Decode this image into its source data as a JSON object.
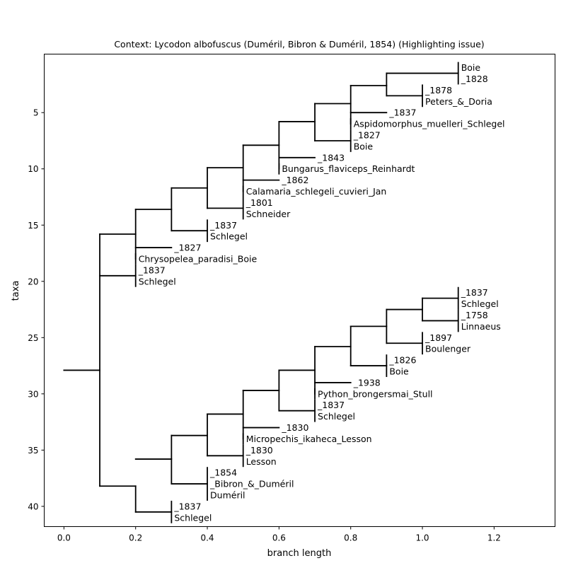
{
  "chart_data": {
    "type": "dendrogram",
    "title": "Context: Lycodon albofuscus (Duméril, Bibron & Duméril, 1854) (Highlighting issue)",
    "xlabel": "branch length",
    "ylabel": "taxa",
    "xlim": [
      -0.055,
      1.37
    ],
    "ylim": [
      41.8,
      -0.2
    ],
    "xticks": [
      "0.0",
      "0.2",
      "0.4",
      "0.6",
      "0.8",
      "1.0",
      "1.2"
    ],
    "yticks": [
      "5",
      "10",
      "15",
      "20",
      "25",
      "30",
      "35",
      "40"
    ],
    "xtick_values": [
      0,
      0.2,
      0.4,
      0.6,
      0.8,
      1.0,
      1.2
    ],
    "ytick_values": [
      5,
      10,
      15,
      20,
      25,
      30,
      35,
      40
    ],
    "grid": false,
    "line_color": "#000000",
    "labels": [
      {
        "x": 1.1,
        "y": 1,
        "text": "Boie"
      },
      {
        "x": 1.1,
        "y": 2,
        "text": "_1828"
      },
      {
        "x": 1.0,
        "y": 3,
        "text": "_1878"
      },
      {
        "x": 1.0,
        "y": 4,
        "text": "Peters_&_Doria"
      },
      {
        "x": 0.9,
        "y": 5,
        "text": "_1837"
      },
      {
        "x": 0.8,
        "y": 6,
        "text": "Aspidomorphus_muelleri_Schlegel"
      },
      {
        "x": 0.8,
        "y": 7,
        "text": "_1827"
      },
      {
        "x": 0.8,
        "y": 8,
        "text": "Boie"
      },
      {
        "x": 0.7,
        "y": 9,
        "text": "_1843"
      },
      {
        "x": 0.6,
        "y": 10,
        "text": "Bungarus_flaviceps_Reinhardt"
      },
      {
        "x": 0.6,
        "y": 11,
        "text": "_1862"
      },
      {
        "x": 0.5,
        "y": 12,
        "text": "Calamaria_schlegeli_cuvieri_Jan"
      },
      {
        "x": 0.5,
        "y": 13,
        "text": "_1801"
      },
      {
        "x": 0.5,
        "y": 14,
        "text": "Schneider"
      },
      {
        "x": 0.4,
        "y": 15,
        "text": "_1837"
      },
      {
        "x": 0.4,
        "y": 16,
        "text": "Schlegel"
      },
      {
        "x": 0.3,
        "y": 17,
        "text": "_1827"
      },
      {
        "x": 0.2,
        "y": 18,
        "text": "Chrysopelea_paradisi_Boie"
      },
      {
        "x": 0.2,
        "y": 19,
        "text": "_1837"
      },
      {
        "x": 0.2,
        "y": 20,
        "text": "Schlegel"
      },
      {
        "x": 1.1,
        "y": 21,
        "text": "_1837"
      },
      {
        "x": 1.1,
        "y": 22,
        "text": "Schlegel"
      },
      {
        "x": 1.1,
        "y": 23,
        "text": "_1758"
      },
      {
        "x": 1.1,
        "y": 24,
        "text": "Linnaeus"
      },
      {
        "x": 1.0,
        "y": 25,
        "text": "_1897"
      },
      {
        "x": 1.0,
        "y": 26,
        "text": "Boulenger"
      },
      {
        "x": 0.9,
        "y": 27,
        "text": "_1826"
      },
      {
        "x": 0.9,
        "y": 28,
        "text": "Boie"
      },
      {
        "x": 0.8,
        "y": 29,
        "text": "_1938"
      },
      {
        "x": 0.7,
        "y": 30,
        "text": "Python_brongersmai_Stull"
      },
      {
        "x": 0.7,
        "y": 31,
        "text": "_1837"
      },
      {
        "x": 0.7,
        "y": 32,
        "text": "Schlegel"
      },
      {
        "x": 0.6,
        "y": 33,
        "text": "_1830"
      },
      {
        "x": 0.5,
        "y": 34,
        "text": "Micropechis_ikaheca_Lesson"
      },
      {
        "x": 0.5,
        "y": 35,
        "text": "_1830"
      },
      {
        "x": 0.5,
        "y": 36,
        "text": "Lesson"
      },
      {
        "x": 0.4,
        "y": 37,
        "text": "_1854"
      },
      {
        "x": 0.4,
        "y": 38,
        "text": "_Bibron_&_Duméril"
      },
      {
        "x": 0.4,
        "y": 39,
        "text": "Duméril"
      },
      {
        "x": 0.3,
        "y": 40,
        "text": "_1837"
      },
      {
        "x": 0.3,
        "y": 41,
        "text": "Schlegel"
      }
    ],
    "segments": [
      [
        0.0,
        27.9,
        0.1,
        27.9
      ],
      [
        0.1,
        15.8,
        0.1,
        38.2
      ],
      [
        0.1,
        15.8,
        0.2,
        15.8
      ],
      [
        0.1,
        38.2,
        0.2,
        38.2
      ],
      [
        0.2,
        13.6,
        0.2,
        18.0
      ],
      [
        0.2,
        13.6,
        0.3,
        13.6
      ],
      [
        0.2,
        17.0,
        0.3,
        17.0
      ],
      [
        0.3,
        11.7,
        0.3,
        15.5
      ],
      [
        0.3,
        11.7,
        0.4,
        11.7
      ],
      [
        0.3,
        15.5,
        0.4,
        15.5
      ],
      [
        0.4,
        9.9,
        0.4,
        13.5
      ],
      [
        0.4,
        9.9,
        0.5,
        9.9
      ],
      [
        0.4,
        13.5,
        0.5,
        13.5
      ],
      [
        0.5,
        7.9,
        0.5,
        12.0
      ],
      [
        0.5,
        7.9,
        0.6,
        7.9
      ],
      [
        0.5,
        11.0,
        0.6,
        11.0
      ],
      [
        0.6,
        5.8,
        0.6,
        10.0
      ],
      [
        0.6,
        5.8,
        0.7,
        5.8
      ],
      [
        0.6,
        9.0,
        0.7,
        9.0
      ],
      [
        0.7,
        4.2,
        0.7,
        7.5
      ],
      [
        0.7,
        4.2,
        0.8,
        4.2
      ],
      [
        0.7,
        7.5,
        0.8,
        7.5
      ],
      [
        0.8,
        2.6,
        0.8,
        6.0
      ],
      [
        0.8,
        2.6,
        0.9,
        2.6
      ],
      [
        0.8,
        5.0,
        0.9,
        5.0
      ],
      [
        0.9,
        1.5,
        0.9,
        3.5
      ],
      [
        0.9,
        1.5,
        1.1,
        1.5
      ],
      [
        0.9,
        3.5,
        1.0,
        3.5
      ],
      [
        0.1,
        19.5,
        0.2,
        19.5
      ],
      [
        0.2,
        38.2,
        0.2,
        40.5
      ],
      [
        0.2,
        35.8,
        0.3,
        35.8
      ],
      [
        0.2,
        40.5,
        0.3,
        40.5
      ],
      [
        0.3,
        33.7,
        0.3,
        38.0
      ],
      [
        0.3,
        33.7,
        0.4,
        33.7
      ],
      [
        0.3,
        38.0,
        0.4,
        38.0
      ],
      [
        0.4,
        31.8,
        0.4,
        35.5
      ],
      [
        0.4,
        31.8,
        0.5,
        31.8
      ],
      [
        0.4,
        35.5,
        0.5,
        35.5
      ],
      [
        0.5,
        29.7,
        0.5,
        34.0
      ],
      [
        0.5,
        29.7,
        0.6,
        29.7
      ],
      [
        0.5,
        33.0,
        0.6,
        33.0
      ],
      [
        0.6,
        27.9,
        0.6,
        31.5
      ],
      [
        0.6,
        27.9,
        0.7,
        27.9
      ],
      [
        0.6,
        31.5,
        0.7,
        31.5
      ],
      [
        0.7,
        25.8,
        0.7,
        30.0
      ],
      [
        0.7,
        25.8,
        0.8,
        25.8
      ],
      [
        0.7,
        29.0,
        0.8,
        29.0
      ],
      [
        0.8,
        24.0,
        0.8,
        27.5
      ],
      [
        0.8,
        24.0,
        0.9,
        24.0
      ],
      [
        0.8,
        27.5,
        0.9,
        27.5
      ],
      [
        0.9,
        22.5,
        0.9,
        25.5
      ],
      [
        0.9,
        22.5,
        1.0,
        22.5
      ],
      [
        0.9,
        25.5,
        1.0,
        25.5
      ],
      [
        1.0,
        21.5,
        1.0,
        23.5
      ],
      [
        1.0,
        21.5,
        1.1,
        21.5
      ],
      [
        1.0,
        23.5,
        1.1,
        23.5
      ]
    ],
    "terminal_ticks": [
      [
        1.1,
        1,
        2
      ],
      [
        1.0,
        3,
        4
      ],
      [
        0.8,
        6,
        6
      ],
      [
        0.8,
        7,
        8
      ],
      [
        0.6,
        10,
        10
      ],
      [
        0.5,
        12,
        12
      ],
      [
        0.5,
        13,
        14
      ],
      [
        0.4,
        15,
        16
      ],
      [
        0.2,
        18,
        18
      ],
      [
        0.2,
        19,
        20
      ],
      [
        1.1,
        21,
        22
      ],
      [
        1.1,
        23,
        24
      ],
      [
        1.0,
        25,
        26
      ],
      [
        0.9,
        27,
        28
      ],
      [
        0.7,
        30,
        30
      ],
      [
        0.7,
        31,
        32
      ],
      [
        0.5,
        34,
        34
      ],
      [
        0.5,
        35,
        36
      ],
      [
        0.4,
        37,
        39
      ],
      [
        0.3,
        40,
        41
      ]
    ]
  }
}
